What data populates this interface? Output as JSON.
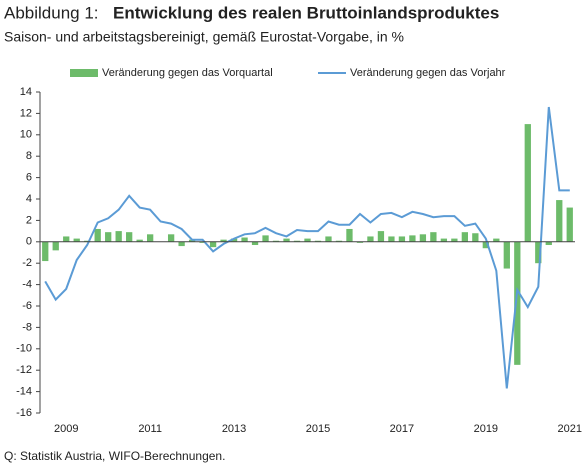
{
  "chart_data": {
    "type": "bar_line",
    "title_prefix": "Abbildung 1:",
    "title": "Entwicklung des realen Bruttoinlandsproduktes",
    "subtitle": "Saison- und arbeitstagsbereinigt, gemäß Eurostat-Vorgabe, in %",
    "source": "Q: Statistik Austria, WIFO-Berechnungen.",
    "categories": [
      null,
      null,
      "2009",
      null,
      null,
      null,
      null,
      null,
      null,
      null,
      "2011",
      null,
      null,
      null,
      null,
      null,
      null,
      null,
      "2013",
      null,
      null,
      null,
      null,
      null,
      null,
      null,
      "2015",
      null,
      null,
      null,
      null,
      null,
      null,
      null,
      "2017",
      null,
      null,
      null,
      null,
      null,
      null,
      null,
      "2019",
      null,
      null,
      null,
      null,
      null,
      null,
      null,
      "2021"
    ],
    "series": [
      {
        "name": "Veränderung gegen das Vorquartal",
        "type": "bar",
        "color": "#6dbb6a",
        "values": [
          -1.8,
          -0.8,
          0.5,
          0.3,
          0.1,
          1.2,
          0.9,
          1.0,
          0.9,
          0.2,
          0.7,
          0.0,
          0.7,
          -0.4,
          0.2,
          -0.1,
          -0.5,
          0.2,
          0.3,
          0.4,
          -0.3,
          0.6,
          0.1,
          0.3,
          0.1,
          0.3,
          0.1,
          0.5,
          0.1,
          1.2,
          -0.1,
          0.5,
          1.0,
          0.5,
          0.5,
          0.6,
          0.7,
          0.9,
          0.3,
          0.3,
          0.9,
          0.8,
          -0.6,
          0.3,
          -2.5,
          -11.5,
          11.0,
          -2.0,
          -0.3,
          3.9,
          3.2
        ]
      },
      {
        "name": "Veränderung gegen das Vorjahr",
        "type": "line",
        "color": "#5b9bd5",
        "values": [
          -3.7,
          -5.4,
          -4.4,
          -1.7,
          -0.3,
          1.8,
          2.2,
          3.0,
          4.3,
          3.2,
          3.0,
          1.9,
          1.7,
          1.2,
          0.2,
          0.2,
          -0.9,
          -0.2,
          0.3,
          0.7,
          0.8,
          1.3,
          0.8,
          0.5,
          1.1,
          1.0,
          1.0,
          1.9,
          1.6,
          1.6,
          2.6,
          1.8,
          2.6,
          2.7,
          2.3,
          2.8,
          2.6,
          2.3,
          2.4,
          2.4,
          1.5,
          1.7,
          0.3,
          -2.7,
          -13.7,
          -4.5,
          -6.1,
          -4.2,
          12.6,
          4.8,
          4.8
        ]
      }
    ],
    "ylim": [
      -16,
      14
    ],
    "yticks": [
      -16,
      -14,
      -12,
      -10,
      -8,
      -6,
      -4,
      -2,
      0,
      2,
      4,
      6,
      8,
      10,
      12,
      14
    ]
  }
}
